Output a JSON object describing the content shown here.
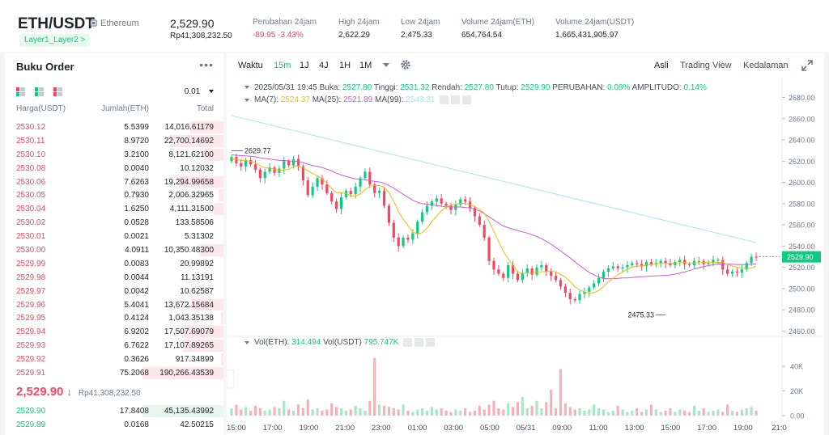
{
  "header": {
    "symbol": "ETH/USDT",
    "network": "Ethereum",
    "tag": "Layer1_Layer2 >",
    "price": "2,529.90",
    "price_fiat": "Rp41,308,232.50",
    "stats": [
      {
        "label": "Perubahan 24jam",
        "value": "-89.95 -3.43%",
        "negative": true
      },
      {
        "label": "High 24jam",
        "value": "2,622.29",
        "negative": false
      },
      {
        "label": "Low 24jam",
        "value": "2,475.33",
        "negative": false
      },
      {
        "label": "Volume 24jam(ETH)",
        "value": "654,764.54",
        "negative": false
      },
      {
        "label": "Volume 24jam(USDT)",
        "value": "1,665,431,905.97",
        "negative": false
      }
    ]
  },
  "orderbook": {
    "title": "Buku Order",
    "more": "•••",
    "precision": "0.01",
    "columns": [
      "Harga(USDT)",
      "Jumlah(ETH)",
      "Total"
    ],
    "asks": [
      {
        "price": "2530.12",
        "qty": "5.5399",
        "total": "14,016.61179",
        "depth": 0.41
      },
      {
        "price": "2530.11",
        "qty": "8.9720",
        "total": "22,700.14692",
        "depth": 0.66
      },
      {
        "price": "2530.10",
        "qty": "3.2100",
        "total": "8,121.62100",
        "depth": 0.24
      },
      {
        "price": "2530.08",
        "qty": "0.0040",
        "total": "10.12032",
        "depth": 0.0
      },
      {
        "price": "2530.06",
        "qty": "7.6263",
        "total": "19,294.99658",
        "depth": 0.56
      },
      {
        "price": "2530.05",
        "qty": "0.7930",
        "total": "2,006.32965",
        "depth": 0.06
      },
      {
        "price": "2530.04",
        "qty": "1.6250",
        "total": "4,111.31500",
        "depth": 0.12
      },
      {
        "price": "2530.02",
        "qty": "0.0528",
        "total": "133.58506",
        "depth": 0.0
      },
      {
        "price": "2530.01",
        "qty": "0.0021",
        "total": "5.31302",
        "depth": 0.0
      },
      {
        "price": "2530.00",
        "qty": "4.0911",
        "total": "10,350.48300",
        "depth": 0.3
      },
      {
        "price": "2529.99",
        "qty": "0.0083",
        "total": "20.99892",
        "depth": 0.0
      },
      {
        "price": "2529.98",
        "qty": "0.0044",
        "total": "11.13191",
        "depth": 0.0
      },
      {
        "price": "2529.97",
        "qty": "0.0042",
        "total": "10.62587",
        "depth": 0.0
      },
      {
        "price": "2529.96",
        "qty": "5.4041",
        "total": "13,672.15684",
        "depth": 0.4
      },
      {
        "price": "2529.95",
        "qty": "0.4124",
        "total": "1,043.35138",
        "depth": 0.03
      },
      {
        "price": "2529.94",
        "qty": "6.9202",
        "total": "17,507.69079",
        "depth": 0.51
      },
      {
        "price": "2529.93",
        "qty": "6.7622",
        "total": "17,107.89265",
        "depth": 0.5
      },
      {
        "price": "2529.92",
        "qty": "0.3626",
        "total": "917.34899",
        "depth": 0.03
      },
      {
        "price": "2529.91",
        "qty": "75.2068",
        "total": "190,266.43539",
        "depth": 1.0
      }
    ],
    "last_price": "2,529.90",
    "last_arrow": "↓",
    "last_fiat": "Rp41,308,232.50",
    "bids": [
      {
        "price": "2529.90",
        "qty": "17.8408",
        "total": "45,135.43992",
        "depth": 1.0
      },
      {
        "price": "2529.89",
        "qty": "0.0168",
        "total": "42.50215",
        "depth": 0.0
      }
    ]
  },
  "toolbar": {
    "left": [
      "Waktu",
      "15m",
      "1J",
      "4J",
      "1H",
      "1M"
    ],
    "active": "15m",
    "right": [
      "Asli",
      "Trading View",
      "Kedalaman"
    ],
    "selected_view": "Asli"
  },
  "legend": {
    "ohlc_date": "2025/05/31 19:45",
    "open_label": "Buka:",
    "open": "2527.80",
    "high_label": "Tinggi:",
    "high": "2531.32",
    "low_label": "Rendah:",
    "low": "2527.80",
    "close_label": "Tutup:",
    "close": "2529.90",
    "change_label": "PERUBAHAN:",
    "change": "0.08%",
    "amp_label": "AMPLITUDO:",
    "amp": "0.14%",
    "ma7_label": "MA(7):",
    "ma7": "2524.37",
    "ma25_label": "MA(25):",
    "ma25": "2521.89",
    "ma99_label": "MA(99):",
    "ma99": "2543.31",
    "vol_eth_label": "Vol(ETH):",
    "vol_eth": "314.494",
    "vol_usdt_label": "Vol(USDT)",
    "vol_usdt": "795.747K"
  },
  "colors": {
    "up": "#0ecb81",
    "down": "#f6465d",
    "ma7": "#f0b90b",
    "ma25": "#cf5ad7",
    "ma99": "#9ee8f0"
  },
  "chart_data": {
    "type": "candlestick",
    "y_ticks": [
      2460,
      2480,
      2500,
      2520,
      2540,
      2560,
      2580,
      2600,
      2620,
      2640,
      2660,
      2680
    ],
    "ylim": [
      2455,
      2688
    ],
    "vol_ticks": [
      "0.00",
      "20K",
      "40K"
    ],
    "vol_max": 48000,
    "x_ticks": [
      "15:00",
      "17:00",
      "19:00",
      "21:00",
      "23:00",
      "01:00",
      "03:00",
      "05:00",
      "05/31",
      "09:00",
      "11:00",
      "13:00",
      "15:00",
      "17:00",
      "19:00",
      "21:0"
    ],
    "current_price": 2529.9,
    "current_price_label": "2529.90",
    "high_marker": {
      "index": 0,
      "value": 2629.77,
      "label": "2629.77"
    },
    "low_marker": {
      "index": 91,
      "value": 2475.33,
      "label": "2475.33"
    },
    "close": [
      2624,
      2618,
      2615,
      2621,
      2617,
      2612,
      2604,
      2610,
      2614,
      2609,
      2613,
      2620,
      2616,
      2622,
      2615,
      2602,
      2588,
      2596,
      2604,
      2598,
      2590,
      2582,
      2575,
      2586,
      2592,
      2589,
      2596,
      2604,
      2610,
      2598,
      2590,
      2592,
      2578,
      2562,
      2548,
      2540,
      2548,
      2546,
      2552,
      2563,
      2572,
      2578,
      2582,
      2585,
      2580,
      2578,
      2574,
      2579,
      2584,
      2582,
      2576,
      2568,
      2560,
      2548,
      2526,
      2518,
      2514,
      2510,
      2522,
      2514,
      2508,
      2515,
      2519,
      2513,
      2520,
      2522,
      2516,
      2512,
      2508,
      2502,
      2496,
      2490,
      2489,
      2495,
      2497,
      2501,
      2505,
      2510,
      2516,
      2519,
      2521,
      2519,
      2520,
      2522,
      2524,
      2523,
      2521,
      2525,
      2523,
      2524,
      2526,
      2524,
      2522,
      2525,
      2527,
      2523,
      2522,
      2526,
      2526,
      2523,
      2524,
      2527,
      2527,
      2518,
      2514,
      2516,
      2515,
      2518,
      2524,
      2530,
      2529.9
    ],
    "volume": [
      6000,
      9000,
      5000,
      7000,
      4000,
      8000,
      6000,
      4000,
      5000,
      7000,
      6000,
      12000,
      5000,
      4000,
      9000,
      6000,
      13000,
      5000,
      6000,
      4000,
      5000,
      10000,
      7000,
      6000,
      4000,
      5000,
      8000,
      6000,
      4000,
      12000,
      47000,
      9000,
      8000,
      7000,
      6000,
      5000,
      9000,
      4000,
      3000,
      5000,
      6000,
      4000,
      7000,
      5000,
      6000,
      4000,
      3000,
      5000,
      4000,
      6000,
      3000,
      4000,
      8000,
      5000,
      9000,
      12000,
      6000,
      5000,
      10000,
      7000,
      11000,
      15000,
      6000,
      8000,
      12000,
      6000,
      11000,
      21000,
      6000,
      38000,
      10000,
      7000,
      5000,
      6000,
      4000,
      5000,
      9000,
      6000,
      5000,
      3000,
      4000,
      8000,
      5000,
      3000,
      4000,
      6000,
      3000,
      5000,
      9000,
      5000,
      3000,
      4000,
      6000,
      3000,
      5000,
      4000,
      3000,
      8000,
      4000,
      6000,
      3000,
      4000,
      5000,
      3000,
      9000,
      4000,
      3000,
      5000,
      6000,
      7000,
      4000
    ]
  }
}
